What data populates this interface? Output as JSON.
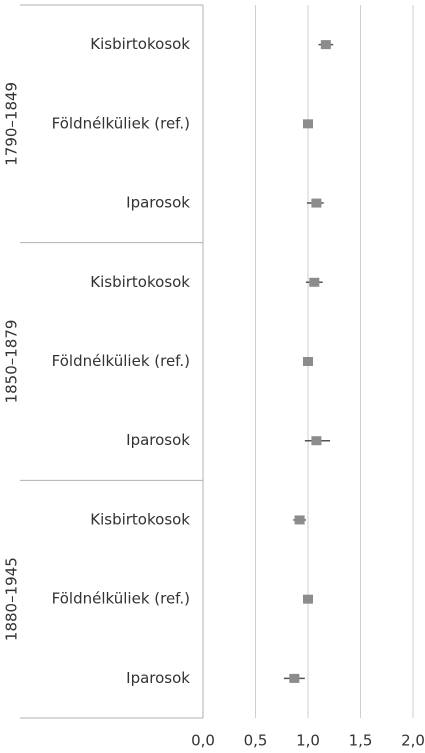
{
  "chart_data": {
    "type": "forest",
    "groups": [
      {
        "name": "1790–1849",
        "categories": [
          "Kisbirtokosok",
          "Földnélküliek (ref.)",
          "Iparosok"
        ],
        "values": [
          1.17,
          1.0,
          1.08
        ],
        "lower": [
          1.1,
          null,
          0.99
        ],
        "upper": [
          1.24,
          null,
          1.15
        ]
      },
      {
        "name": "1850–1879",
        "categories": [
          "Kisbirtokosok",
          "Földnélküliek (ref.)",
          "Iparosok"
        ],
        "values": [
          1.06,
          1.0,
          1.08
        ],
        "lower": [
          0.98,
          null,
          0.97
        ],
        "upper": [
          1.14,
          null,
          1.21
        ]
      },
      {
        "name": "1880–1945",
        "categories": [
          "Kisbirtokosok",
          "Földnélküliek (ref.)",
          "Iparosok"
        ],
        "values": [
          0.92,
          1.0,
          0.87
        ],
        "lower": [
          0.86,
          null,
          0.77
        ],
        "upper": [
          0.98,
          null,
          0.97
        ]
      }
    ],
    "color": "#8c8c8c",
    "error_color": "#555555",
    "xlim": [
      0,
      2
    ],
    "xticks": [
      {
        "value": 0,
        "label": "0,0"
      },
      {
        "value": 0.5,
        "label": "0,5"
      },
      {
        "value": 1,
        "label": "1,0"
      },
      {
        "value": 1.5,
        "label": "1,5"
      },
      {
        "value": 2,
        "label": "2,0"
      }
    ],
    "grid": true
  }
}
